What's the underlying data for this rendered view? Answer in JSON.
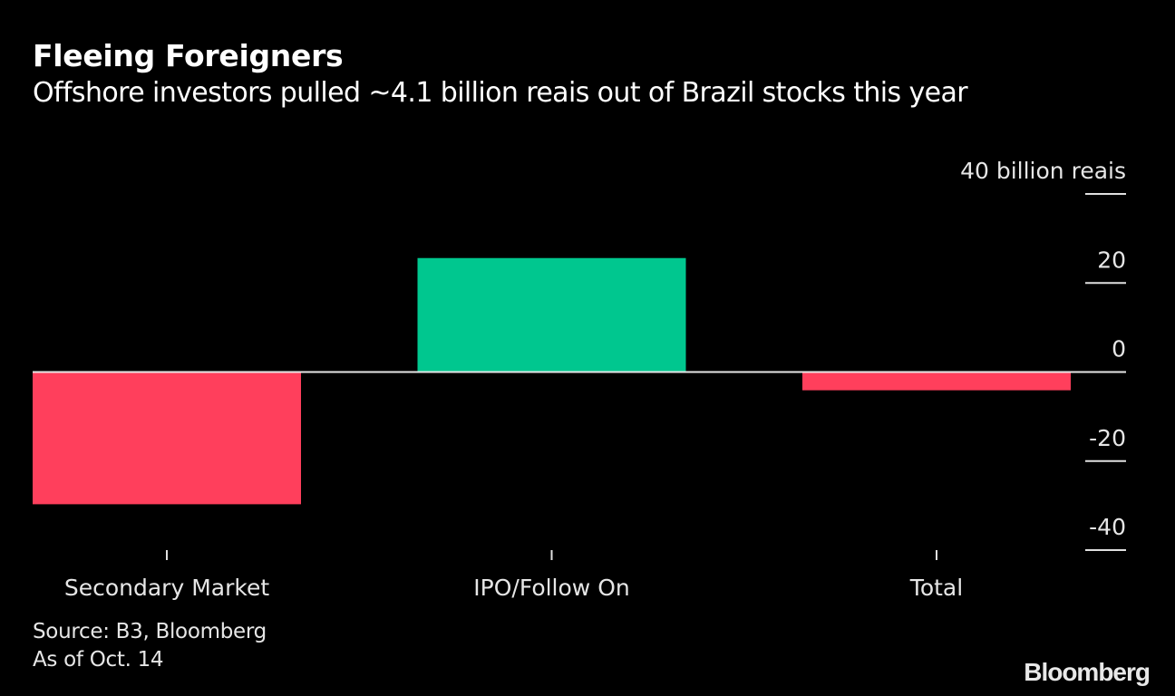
{
  "header": {
    "title": "Fleeing Foreigners",
    "subtitle": "Offshore investors pulled ~4.1 billion reais out of Brazil stocks this year"
  },
  "footer": {
    "source": "Source: B3, Bloomberg",
    "note": "As of Oct. 14",
    "logo": "Bloomberg"
  },
  "chart_data": {
    "type": "bar",
    "title": "Fleeing Foreigners",
    "subtitle": "Offshore investors pulled ~4.1 billion reais out of Brazil stocks this year",
    "categories": [
      "Secondary Market",
      "IPO/Follow On",
      "Total"
    ],
    "values": [
      -29.7,
      25.6,
      -4.1
    ],
    "colors": [
      "#ff3f5c",
      "#00c78f",
      "#ff3f5c"
    ],
    "positive_color": "#00c78f",
    "negative_color": "#ff3f5c",
    "ylabel": "40 billion reais",
    "unit_label": "billion reais",
    "xlabel": "",
    "ylim": [
      -40,
      40
    ],
    "yticks": [
      40,
      20,
      0,
      -20,
      -40
    ],
    "ytick_labels": [
      "40 billion reais",
      "20",
      "0",
      "-20",
      "-40"
    ],
    "y_axis_side": "right",
    "grid": false,
    "legend": "none"
  }
}
